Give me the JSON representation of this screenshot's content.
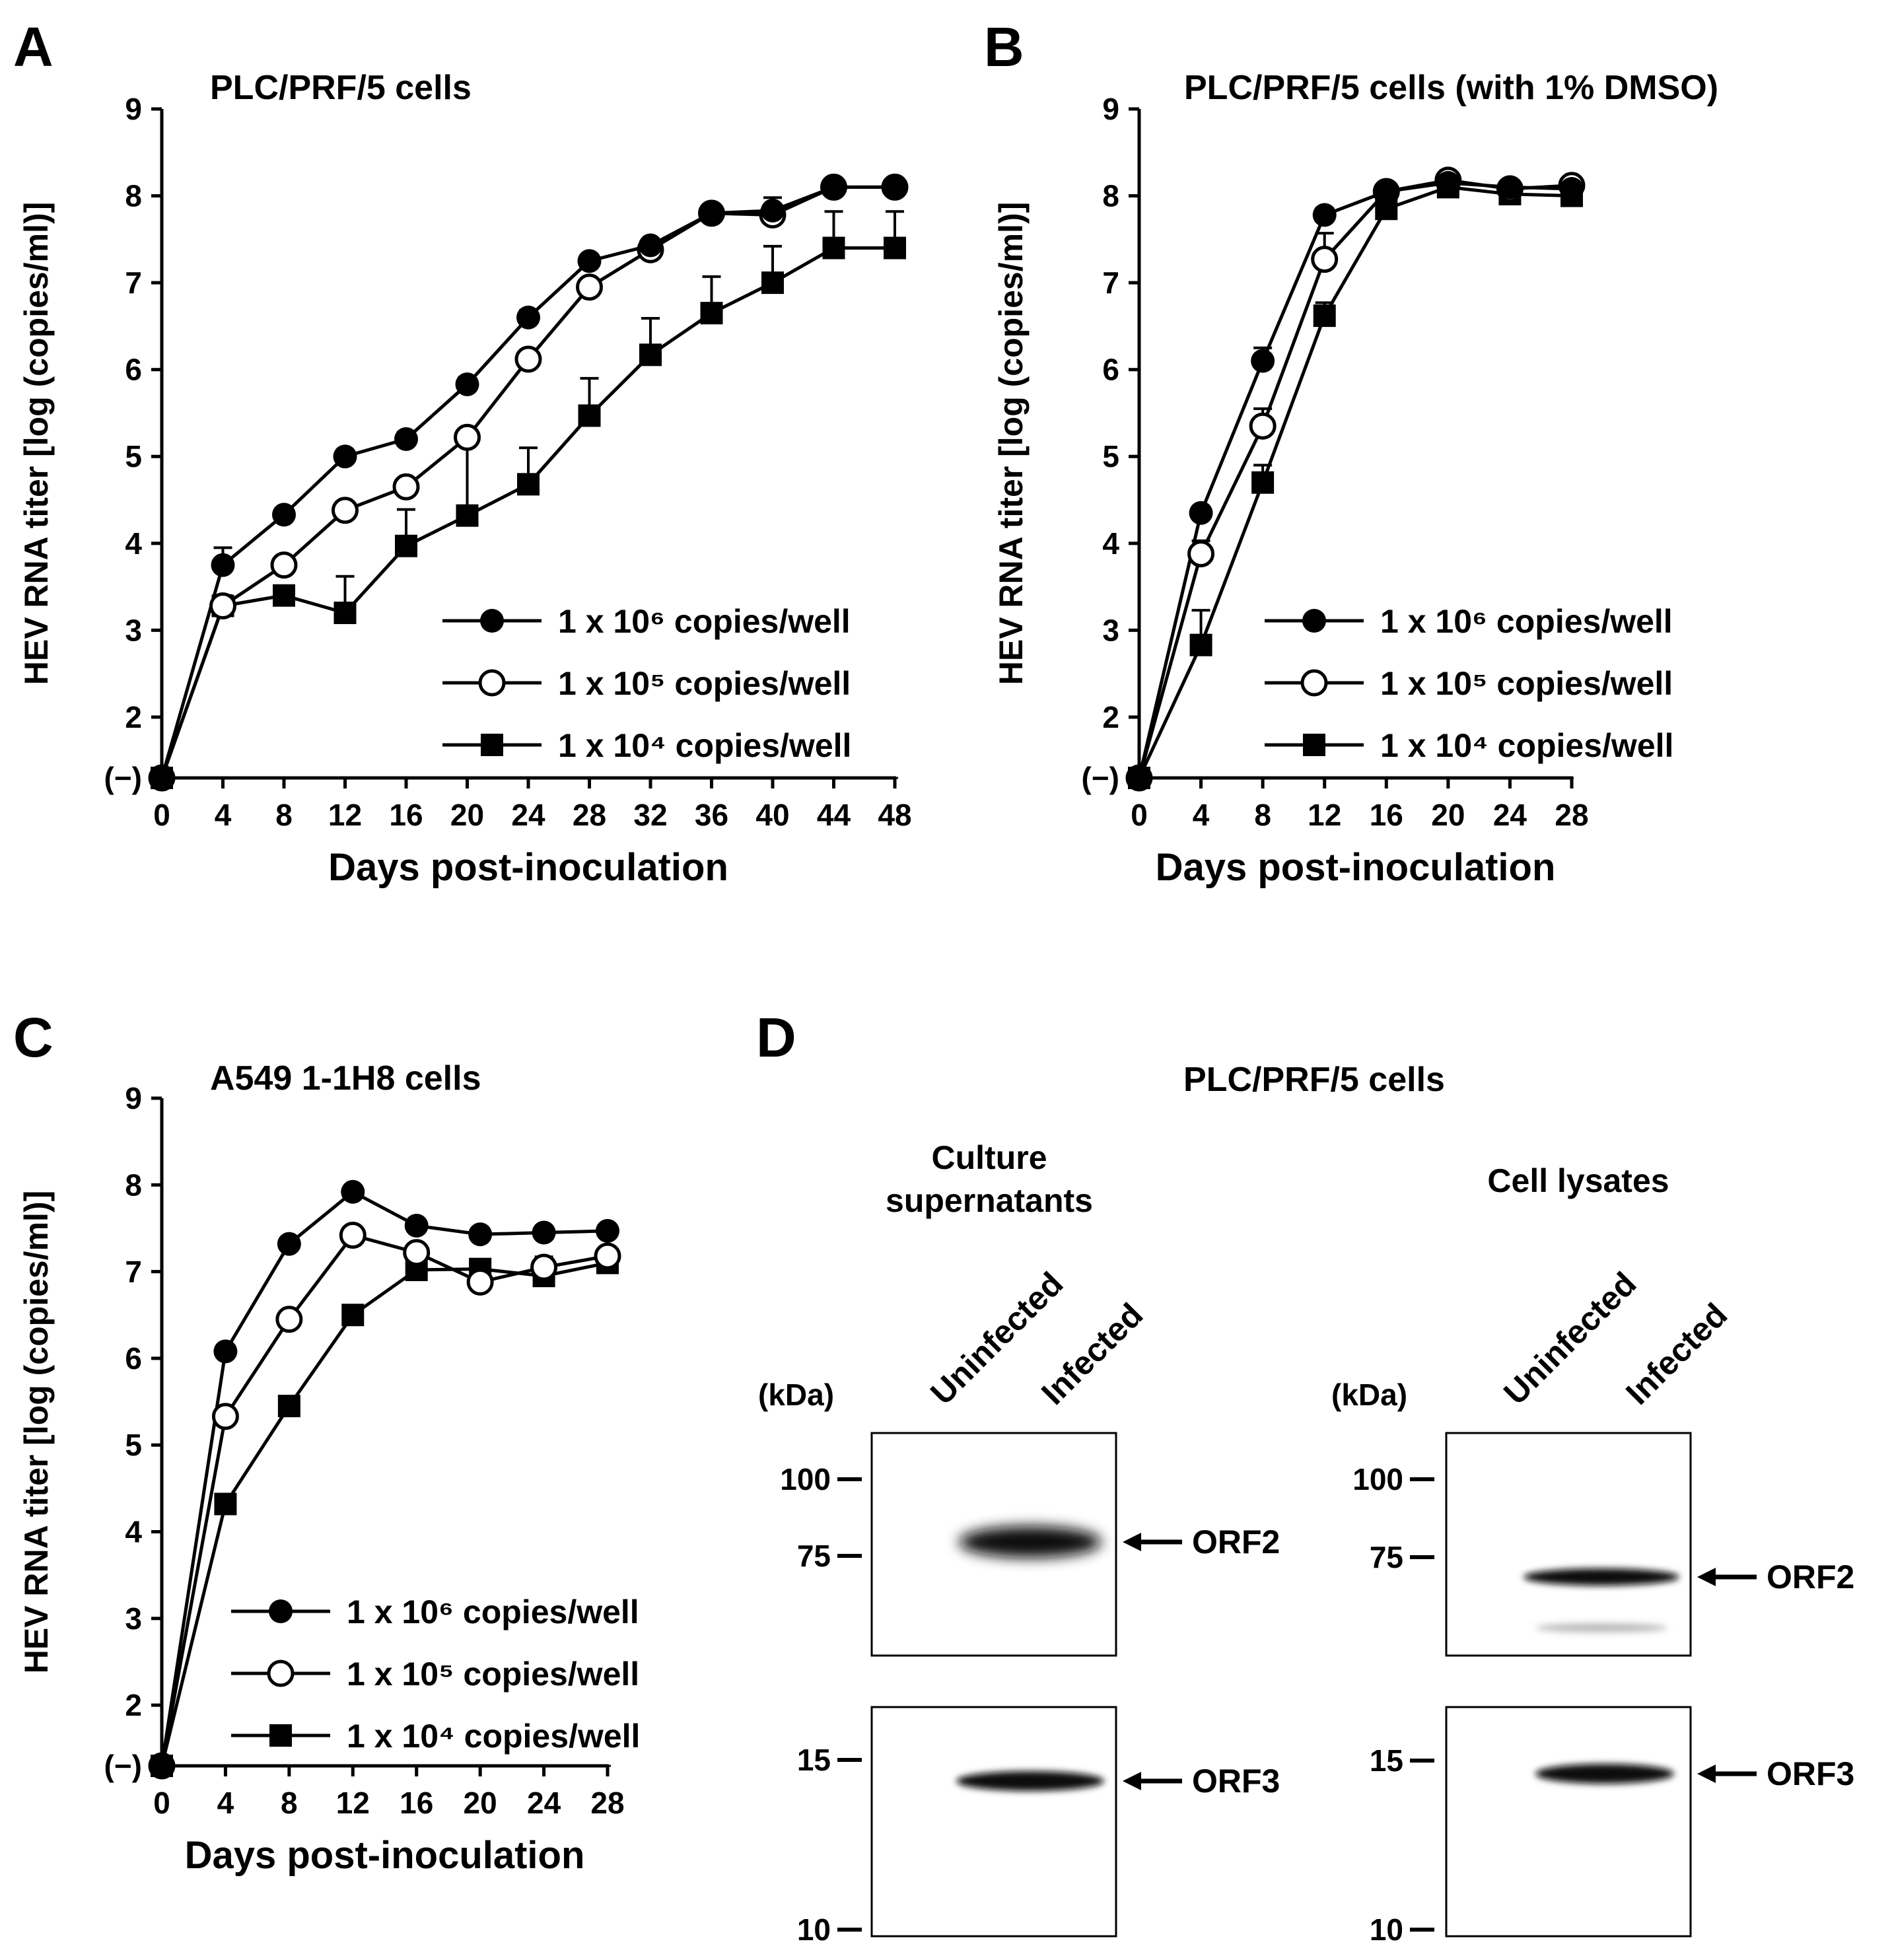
{
  "panels": {
    "A": {
      "label": "A"
    },
    "B": {
      "label": "B"
    },
    "C": {
      "label": "C"
    },
    "D": {
      "label": "D"
    }
  },
  "chart_data": [
    {
      "type": "line",
      "panel": "A",
      "title": "PLC/PRF/5 cells",
      "xlabel": "Days post-inoculation",
      "ylabel": "HEV RNA titer [log (copies/ml)]",
      "ylim": [
        1.3,
        9
      ],
      "xlim": [
        0,
        48
      ],
      "y_ticks": [
        "(−)",
        "2",
        "3",
        "4",
        "5",
        "6",
        "7",
        "8",
        "9"
      ],
      "x_ticks": [
        "0",
        "4",
        "8",
        "12",
        "16",
        "20",
        "24",
        "28",
        "32",
        "36",
        "40",
        "44",
        "48"
      ],
      "baseline": 1.3,
      "legend_position": "lower-right",
      "series": [
        {
          "name": "1 x 10⁶ copies/well",
          "marker": "filled-circle",
          "x": [
            0,
            4,
            8,
            12,
            16,
            20,
            24,
            28,
            32,
            36,
            40,
            44,
            48
          ],
          "values": [
            1.3,
            3.75,
            4.33,
            5.0,
            5.2,
            5.83,
            6.6,
            7.25,
            7.43,
            7.8,
            7.83,
            8.1,
            8.1
          ],
          "err": [
            0,
            0.2,
            0.05,
            0.05,
            0.08,
            0.08,
            0.08,
            0.05,
            0.05,
            0.05,
            0.05,
            0.05,
            0.04
          ]
        },
        {
          "name": "1 x 10⁵ copies/well",
          "marker": "open-circle",
          "x": [
            0,
            4,
            8,
            12,
            16,
            20,
            24,
            28,
            32,
            36,
            40,
            44,
            48
          ],
          "values": [
            1.3,
            3.28,
            3.75,
            4.38,
            4.65,
            5.22,
            6.12,
            6.95,
            7.38,
            7.8,
            7.78,
            8.1,
            8.1
          ],
          "err": [
            0,
            0.12,
            0.1,
            0.1,
            0.08,
            0.08,
            0.05,
            0.08,
            0.1,
            0.05,
            0.2,
            0.08,
            0.04
          ]
        },
        {
          "name": "1 x 10⁴ copies/well",
          "marker": "filled-square",
          "x": [
            0,
            4,
            8,
            12,
            16,
            20,
            24,
            28,
            32,
            36,
            40,
            44,
            48
          ],
          "values": [
            1.3,
            3.28,
            3.4,
            3.2,
            3.97,
            4.32,
            4.68,
            5.47,
            6.17,
            6.65,
            7.0,
            7.4,
            7.4
          ],
          "err": [
            0,
            0.1,
            0.1,
            0.42,
            0.42,
            0.93,
            0.42,
            0.43,
            0.42,
            0.42,
            0.42,
            0.42,
            0.42
          ]
        }
      ]
    },
    {
      "type": "line",
      "panel": "B",
      "title": "PLC/PRF/5 cells (with 1% DMSO)",
      "xlabel": "Days post-inoculation",
      "ylabel": "HEV RNA titer [log (copies/ml)]",
      "ylim": [
        1.3,
        9
      ],
      "xlim": [
        0,
        28
      ],
      "y_ticks": [
        "(−)",
        "2",
        "3",
        "4",
        "5",
        "6",
        "7",
        "8",
        "9"
      ],
      "x_ticks": [
        "0",
        "4",
        "8",
        "12",
        "16",
        "20",
        "24",
        "28"
      ],
      "baseline": 1.3,
      "legend_position": "lower-right",
      "series": [
        {
          "name": "1 x 10⁶ copies/well",
          "marker": "filled-circle",
          "x": [
            0,
            4,
            8,
            12,
            16,
            20,
            24,
            28
          ],
          "values": [
            1.3,
            4.35,
            6.1,
            7.78,
            8.05,
            8.15,
            8.1,
            8.08
          ],
          "err": [
            0,
            0.05,
            0.15,
            0.08,
            0.05,
            0.05,
            0.05,
            0.05
          ]
        },
        {
          "name": "1 x 10⁵ copies/well",
          "marker": "open-circle",
          "x": [
            0,
            4,
            8,
            12,
            16,
            20,
            24,
            28
          ],
          "values": [
            1.3,
            3.88,
            5.35,
            7.27,
            8.05,
            8.18,
            8.08,
            8.12
          ],
          "err": [
            0,
            0.15,
            0.2,
            0.3,
            0.05,
            0.05,
            0.05,
            0.05
          ]
        },
        {
          "name": "1 x 10⁴ copies/well",
          "marker": "filled-square",
          "x": [
            0,
            4,
            8,
            12,
            16,
            20,
            24,
            28
          ],
          "values": [
            1.3,
            2.83,
            4.7,
            6.62,
            7.85,
            8.1,
            8.02,
            8.0
          ],
          "err": [
            0,
            0.4,
            0.2,
            0.15,
            0.05,
            0.05,
            0.05,
            0.05
          ]
        }
      ]
    },
    {
      "type": "line",
      "panel": "C",
      "title": "A549 1-1H8 cells",
      "xlabel": "Days post-inoculation",
      "ylabel": "HEV RNA titer [log (copies/ml)]",
      "ylim": [
        1.3,
        9
      ],
      "xlim": [
        0,
        28
      ],
      "y_ticks": [
        "(−)",
        "2",
        "3",
        "4",
        "5",
        "6",
        "7",
        "8",
        "9"
      ],
      "x_ticks": [
        "0",
        "4",
        "8",
        "12",
        "16",
        "20",
        "24",
        "28"
      ],
      "baseline": 1.3,
      "legend_position": "lower-right",
      "series": [
        {
          "name": "1 x 10⁶ copies/well",
          "marker": "filled-circle",
          "x": [
            0,
            4,
            8,
            12,
            16,
            20,
            24,
            28
          ],
          "values": [
            1.3,
            6.08,
            7.32,
            7.92,
            7.53,
            7.43,
            7.45,
            7.47
          ],
          "err": [
            0,
            0.05,
            0.05,
            0.05,
            0.05,
            0.05,
            0.05,
            0.05
          ]
        },
        {
          "name": "1 x 10⁵ copies/well",
          "marker": "open-circle",
          "x": [
            0,
            4,
            8,
            12,
            16,
            20,
            24,
            28
          ],
          "values": [
            1.3,
            5.33,
            6.45,
            7.42,
            7.22,
            6.88,
            7.05,
            7.18
          ],
          "err": [
            0,
            0.05,
            0.05,
            0.05,
            0.05,
            0.05,
            0.08,
            0.05
          ]
        },
        {
          "name": "1 x 10⁴ copies/well",
          "marker": "filled-square",
          "x": [
            0,
            4,
            8,
            12,
            16,
            20,
            24,
            28
          ],
          "values": [
            1.3,
            4.32,
            5.45,
            6.5,
            7.02,
            7.03,
            6.95,
            7.1
          ],
          "err": [
            0,
            0.05,
            0.05,
            0.05,
            0.05,
            0.05,
            0.22,
            0.08
          ]
        }
      ]
    }
  ],
  "blot": {
    "title": "PLC/PRF/5 cells",
    "kda_label": "(kDa)",
    "lane_uninfected": "Uninfected",
    "lane_infected": "Infected",
    "left": {
      "header_line1": "Culture",
      "header_line2": "supernatants"
    },
    "right": {
      "header": "Cell lysates"
    },
    "markers_top": [
      "100",
      "75"
    ],
    "markers_bottom": [
      "15",
      "10"
    ],
    "orf2": "ORF2",
    "orf3": "ORF3"
  }
}
